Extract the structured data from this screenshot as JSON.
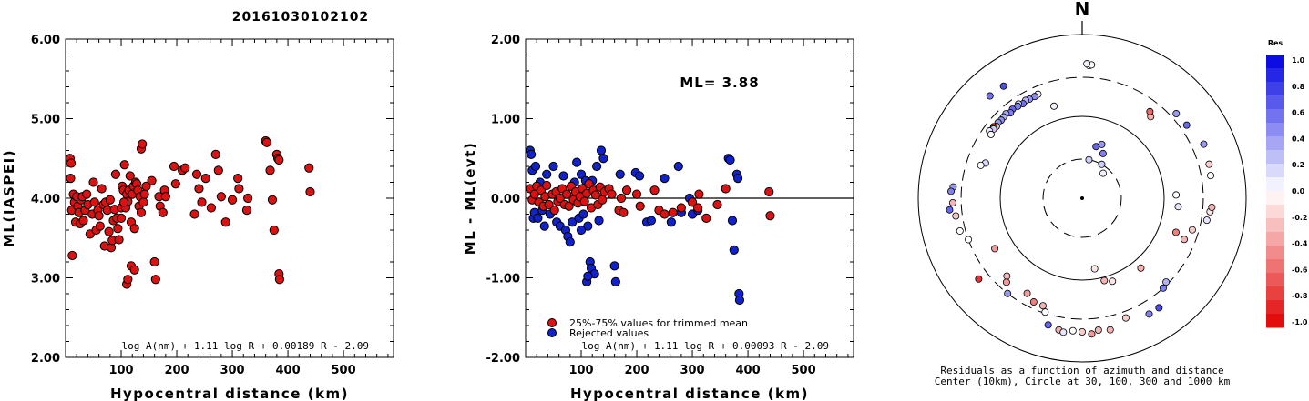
{
  "title": "20161030102102",
  "colors": {
    "red": "#dd1111",
    "blue": "#1122cc",
    "outline": "#000000"
  },
  "chart_data": [
    {
      "type": "scatter",
      "name": "ml-vs-distance",
      "xlabel": "Hypocentral distance (km)",
      "ylabel": "ML(IASPEI)",
      "xlim": [
        0,
        590
      ],
      "ylim": [
        2.0,
        6.0
      ],
      "xticks": [
        100,
        200,
        300,
        400,
        500
      ],
      "yticks": [
        2.0,
        3.0,
        4.0,
        5.0,
        6.0
      ],
      "ytick_labels": [
        "2.00",
        "3.00",
        "4.00",
        "5.00",
        "6.00"
      ],
      "formula": "log A(nm) + 1.11 log R + 0.00189 R - 2.09",
      "points": [
        [
          8,
          4.5
        ],
        [
          10,
          4.44
        ],
        [
          9,
          4.25
        ],
        [
          11,
          3.85
        ],
        [
          12,
          3.28
        ],
        [
          14,
          4.05
        ],
        [
          16,
          3.95
        ],
        [
          18,
          3.7
        ],
        [
          20,
          4.02
        ],
        [
          22,
          3.9
        ],
        [
          24,
          3.82
        ],
        [
          26,
          3.68
        ],
        [
          28,
          3.98
        ],
        [
          30,
          4.02
        ],
        [
          32,
          3.72
        ],
        [
          35,
          3.85
        ],
        [
          38,
          4.05
        ],
        [
          40,
          3.92
        ],
        [
          44,
          3.55
        ],
        [
          48,
          3.8
        ],
        [
          50,
          4.2
        ],
        [
          52,
          3.95
        ],
        [
          55,
          3.6
        ],
        [
          58,
          3.85
        ],
        [
          60,
          3.78
        ],
        [
          62,
          3.65
        ],
        [
          65,
          4.12
        ],
        [
          68,
          3.92
        ],
        [
          70,
          3.4
        ],
        [
          72,
          3.95
        ],
        [
          75,
          3.85
        ],
        [
          78,
          3.58
        ],
        [
          80,
          3.98
        ],
        [
          82,
          3.38
        ],
        [
          84,
          3.47
        ],
        [
          86,
          3.72
        ],
        [
          88,
          3.86
        ],
        [
          90,
          4.3
        ],
        [
          92,
          3.75
        ],
        [
          94,
          3.62
        ],
        [
          96,
          3.48
        ],
        [
          100,
          3.88
        ],
        [
          102,
          4.15
        ],
        [
          104,
          4.1
        ],
        [
          106,
          4.42
        ],
        [
          108,
          3.88
        ],
        [
          110,
          4.05
        ],
        [
          112,
          3.96
        ],
        [
          114,
          4.1
        ],
        [
          116,
          4.28
        ],
        [
          118,
          3.7
        ],
        [
          120,
          4.05
        ],
        [
          122,
          4.15
        ],
        [
          124,
          3.62
        ],
        [
          126,
          4.2
        ],
        [
          128,
          4.18
        ],
        [
          130,
          4.1
        ],
        [
          132,
          3.9
        ],
        [
          134,
          4.02
        ],
        [
          136,
          3.82
        ],
        [
          110,
          2.92
        ],
        [
          112,
          2.98
        ],
        [
          118,
          3.15
        ],
        [
          124,
          3.1
        ],
        [
          136,
          4.62
        ],
        [
          138,
          4.68
        ],
        [
          155,
          4.22
        ],
        [
          160,
          3.2
        ],
        [
          162,
          2.98
        ],
        [
          168,
          4.02
        ],
        [
          170,
          3.9
        ],
        [
          175,
          3.82
        ],
        [
          178,
          4.1
        ],
        [
          180,
          4.02
        ],
        [
          195,
          4.4
        ],
        [
          198,
          4.18
        ],
        [
          210,
          4.35
        ],
        [
          215,
          4.38
        ],
        [
          232,
          3.8
        ],
        [
          236,
          4.3
        ],
        [
          240,
          4.12
        ],
        [
          245,
          3.95
        ],
        [
          252,
          4.25
        ],
        [
          262,
          3.88
        ],
        [
          270,
          4.55
        ],
        [
          275,
          4.35
        ],
        [
          280,
          4.02
        ],
        [
          288,
          3.7
        ],
        [
          300,
          3.98
        ],
        [
          310,
          4.25
        ],
        [
          312,
          4.12
        ],
        [
          326,
          3.85
        ],
        [
          328,
          4.0
        ],
        [
          360,
          4.72
        ],
        [
          362,
          4.7
        ],
        [
          368,
          4.35
        ],
        [
          372,
          3.98
        ],
        [
          375,
          3.6
        ],
        [
          380,
          4.55
        ],
        [
          382,
          4.5
        ],
        [
          384,
          4.48
        ],
        [
          384,
          3.05
        ],
        [
          385,
          2.98
        ],
        [
          438,
          4.38
        ],
        [
          440,
          4.08
        ],
        [
          140,
          3.95
        ],
        [
          142,
          4.05
        ],
        [
          145,
          4.15
        ],
        [
          100,
          3.75
        ],
        [
          105,
          3.95
        ]
      ]
    },
    {
      "type": "scatter",
      "name": "residual-vs-distance",
      "xlabel": "Hypocentral distance (km)",
      "ylabel": "ML - ML(evt)",
      "xlim": [
        0,
        590
      ],
      "ylim": [
        -2.0,
        2.0
      ],
      "xticks": [
        100,
        200,
        300,
        400,
        500
      ],
      "yticks": [
        -2.0,
        -1.0,
        0.0,
        1.0,
        2.0
      ],
      "ytick_labels": [
        "-2.00",
        "-1.00",
        "0.00",
        "1.00",
        "2.00"
      ],
      "ml_label": "ML= 3.88",
      "formula": "log A(nm) + 1.11 log R + 0.00093 R - 2.09",
      "legend": [
        "25%-75% values for trimmed mean",
        "Rejected values"
      ],
      "red_points": [
        [
          8,
          0.12
        ],
        [
          12,
          -0.02
        ],
        [
          16,
          0.05
        ],
        [
          20,
          0.15
        ],
        [
          24,
          -0.05
        ],
        [
          28,
          0.1
        ],
        [
          32,
          -0.1
        ],
        [
          35,
          0.02
        ],
        [
          38,
          0.16
        ],
        [
          42,
          -0.08
        ],
        [
          48,
          0.05
        ],
        [
          52,
          -0.15
        ],
        [
          55,
          0.08
        ],
        [
          58,
          -0.04
        ],
        [
          62,
          0.0
        ],
        [
          66,
          0.12
        ],
        [
          70,
          -0.08
        ],
        [
          74,
          0.05
        ],
        [
          78,
          -0.1
        ],
        [
          82,
          0.15
        ],
        [
          86,
          -0.02
        ],
        [
          90,
          0.08
        ],
        [
          94,
          -0.06
        ],
        [
          98,
          0.02
        ],
        [
          102,
          0.12
        ],
        [
          106,
          -0.04
        ],
        [
          110,
          0.06
        ],
        [
          114,
          0.18
        ],
        [
          118,
          -0.12
        ],
        [
          122,
          0.1
        ],
        [
          126,
          0.04
        ],
        [
          130,
          -0.08
        ],
        [
          134,
          0.14
        ],
        [
          138,
          -0.02
        ],
        [
          142,
          0.08
        ],
        [
          150,
          0.12
        ],
        [
          155,
          0.05
        ],
        [
          168,
          -0.15
        ],
        [
          172,
          0.0
        ],
        [
          176,
          -0.18
        ],
        [
          182,
          0.1
        ],
        [
          200,
          0.05
        ],
        [
          206,
          -0.1
        ],
        [
          232,
          0.1
        ],
        [
          240,
          -0.15
        ],
        [
          250,
          -0.2
        ],
        [
          265,
          -0.18
        ],
        [
          280,
          -0.12
        ],
        [
          300,
          -0.05
        ],
        [
          310,
          -0.12
        ],
        [
          312,
          0.05
        ],
        [
          325,
          -0.25
        ],
        [
          345,
          -0.08
        ],
        [
          360,
          0.12
        ],
        [
          438,
          0.08
        ],
        [
          440,
          -0.22
        ]
      ],
      "blue_points": [
        [
          8,
          0.6
        ],
        [
          10,
          0.55
        ],
        [
          12,
          0.35
        ],
        [
          14,
          -0.25
        ],
        [
          16,
          -0.18
        ],
        [
          18,
          0.4
        ],
        [
          22,
          -0.25
        ],
        [
          26,
          0.2
        ],
        [
          30,
          -0.15
        ],
        [
          34,
          -0.35
        ],
        [
          38,
          0.3
        ],
        [
          44,
          -0.2
        ],
        [
          50,
          0.4
        ],
        [
          56,
          -0.3
        ],
        [
          62,
          -0.35
        ],
        [
          68,
          0.28
        ],
        [
          72,
          -0.4
        ],
        [
          76,
          -0.48
        ],
        [
          80,
          -0.55
        ],
        [
          84,
          -0.3
        ],
        [
          88,
          0.2
        ],
        [
          92,
          0.45
        ],
        [
          96,
          -0.25
        ],
        [
          100,
          0.3
        ],
        [
          104,
          -0.2
        ],
        [
          108,
          0.22
        ],
        [
          112,
          -0.35
        ],
        [
          116,
          -0.8
        ],
        [
          118,
          -0.88
        ],
        [
          120,
          0.22
        ],
        [
          124,
          -0.95
        ],
        [
          128,
          0.4
        ],
        [
          132,
          -0.28
        ],
        [
          136,
          0.6
        ],
        [
          140,
          0.5
        ],
        [
          110,
          -1.05
        ],
        [
          112,
          -0.98
        ],
        [
          160,
          -0.85
        ],
        [
          162,
          -1.05
        ],
        [
          170,
          0.3
        ],
        [
          198,
          0.32
        ],
        [
          205,
          0.28
        ],
        [
          218,
          -0.3
        ],
        [
          226,
          -0.28
        ],
        [
          250,
          0.25
        ],
        [
          262,
          -0.3
        ],
        [
          275,
          0.4
        ],
        [
          280,
          -0.18
        ],
        [
          295,
          0.0
        ],
        [
          300,
          -0.2
        ],
        [
          310,
          -0.15
        ],
        [
          365,
          0.5
        ],
        [
          368,
          0.48
        ],
        [
          372,
          -0.28
        ],
        [
          375,
          -0.65
        ],
        [
          380,
          0.3
        ],
        [
          382,
          0.25
        ],
        [
          384,
          -1.2
        ],
        [
          385,
          -1.28
        ],
        [
          100,
          -0.4
        ]
      ]
    },
    {
      "type": "polar-scatter",
      "name": "azimuth-distance-residuals",
      "north_label": "N",
      "caption": [
        "Residuals as a function of azimuth and distance",
        "Center (10km), Circle at 30, 100, 300 and 1000 km"
      ],
      "rings_km": [
        30,
        100,
        300,
        1000
      ],
      "points": [
        [
          3,
          420,
          0.0
        ],
        [
          4,
          430,
          0.0
        ],
        [
          2,
          440,
          0.05
        ],
        [
          337,
          240,
          0.05
        ],
        [
          335,
          235,
          0.45
        ],
        [
          332,
          235,
          0.4
        ],
        [
          330,
          240,
          0.3
        ],
        [
          328,
          230,
          0.55
        ],
        [
          326,
          245,
          0.2
        ],
        [
          325,
          235,
          0.5
        ],
        [
          322,
          240,
          0.6
        ],
        [
          320,
          230,
          0.5
        ],
        [
          318,
          245,
          0.35
        ],
        [
          316,
          240,
          0.3
        ],
        [
          314,
          236,
          0.45
        ],
        [
          312,
          240,
          0.4
        ],
        [
          310,
          232,
          -0.3
        ],
        [
          309,
          245,
          -0.8
        ],
        [
          308,
          236,
          0.2
        ],
        [
          306,
          250,
          0.1
        ],
        [
          305,
          228,
          0.0
        ],
        [
          325,
          470,
          0.7
        ],
        [
          318,
          480,
          0.55
        ],
        [
          343,
          150,
          0.05
        ],
        [
          290,
          180,
          0.15
        ],
        [
          288,
          200,
          0.0
        ],
        [
          275,
          380,
          0.4
        ],
        [
          273,
          400,
          0.5
        ],
        [
          268,
          380,
          -0.3
        ],
        [
          265,
          420,
          0.6
        ],
        [
          262,
          360,
          -0.2
        ],
        [
          255,
          350,
          0.0
        ],
        [
          250,
          300,
          0.0
        ],
        [
          240,
          170,
          -0.4
        ],
        [
          232,
          400,
          -0.8
        ],
        [
          224,
          210,
          -0.3
        ],
        [
          222,
          240,
          -0.4
        ],
        [
          218,
          300,
          0.4
        ],
        [
          210,
          220,
          -0.4
        ],
        [
          205,
          250,
          -0.5
        ],
        [
          200,
          250,
          -0.3
        ],
        [
          198,
          290,
          0.0
        ],
        [
          195,
          400,
          0.6
        ],
        [
          190,
          430,
          -0.3
        ],
        [
          188,
          450,
          0.1
        ],
        [
          184,
          420,
          0.0
        ],
        [
          180,
          430,
          -0.2
        ],
        [
          176,
          460,
          -0.4
        ],
        [
          173,
          420,
          -0.3
        ],
        [
          168,
          440,
          -0.3
        ],
        [
          160,
          360,
          -0.2
        ],
        [
          150,
          430,
          0.5
        ],
        [
          145,
          430,
          0.7
        ],
        [
          138,
          300,
          0.5
        ],
        [
          135,
          280,
          0.3
        ],
        [
          170,
          75,
          -0.1
        ],
        [
          165,
          110,
          -0.3
        ],
        [
          160,
          120,
          -0.1
        ],
        [
          140,
          130,
          -0.3
        ],
        [
          110,
          165,
          -0.5
        ],
        [
          112,
          220,
          -0.3
        ],
        [
          106,
          250,
          -0.2
        ],
        [
          100,
          350,
          0.1
        ],
        [
          96,
          370,
          -0.1
        ],
        [
          94,
          385,
          -0.3
        ],
        [
          95,
          150,
          0.1
        ],
        [
          88,
          140,
          0.0
        ],
        [
          80,
          390,
          0.0
        ],
        [
          75,
          400,
          -0.2
        ],
        [
          66,
          420,
          0.4
        ],
        [
          55,
          360,
          0.6
        ],
        [
          48,
          350,
          0.4
        ],
        [
          40,
          200,
          -0.3
        ],
        [
          38,
          220,
          -0.6
        ],
        [
          25,
          40,
          0.5
        ],
        [
          20,
          50,
          0.4
        ],
        [
          15,
          45,
          0.6
        ],
        [
          30,
          30,
          0.2
        ],
        [
          10,
          30,
          0.2
        ],
        [
          40,
          25,
          0.05
        ]
      ]
    }
  ],
  "colorbar": {
    "title": "Res",
    "ticks": [
      "1.0",
      "0.8",
      "0.6",
      "0.4",
      "0.2",
      "0.0",
      "-0.2",
      "-0.4",
      "-0.6",
      "-0.8",
      "-1.0"
    ]
  }
}
